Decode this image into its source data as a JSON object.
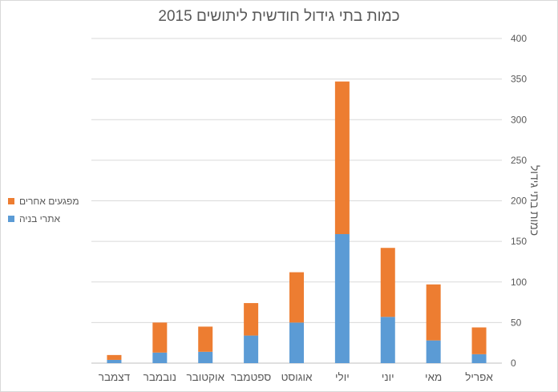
{
  "chart_data": {
    "type": "bar",
    "stacked": true,
    "title": "כמות בתי גידול חודשית ליתושים 2015",
    "ylabel": "כמות בתי גידול",
    "xlabel": "",
    "categories": [
      "אפריל",
      "מאי",
      "יוני",
      "יולי",
      "אוגוסט",
      "ספטמבר",
      "אוקטובר",
      "נובמבר",
      "דצמבר"
    ],
    "series": [
      {
        "name": "אתרי בניה",
        "color": "#5b9bd5",
        "values": [
          11,
          28,
          57,
          159,
          50,
          34,
          14,
          13,
          4
        ]
      },
      {
        "name": "מפגעים אחרים",
        "color": "#ed7d31",
        "values": [
          33,
          69,
          85,
          188,
          62,
          40,
          31,
          37,
          6
        ]
      }
    ],
    "ylim": [
      0,
      400
    ],
    "yticks": [
      0,
      50,
      100,
      150,
      200,
      250,
      300,
      350,
      400
    ],
    "grid": true,
    "legend_position": "left",
    "axis_side": "right",
    "category_order": "right-to-left"
  }
}
